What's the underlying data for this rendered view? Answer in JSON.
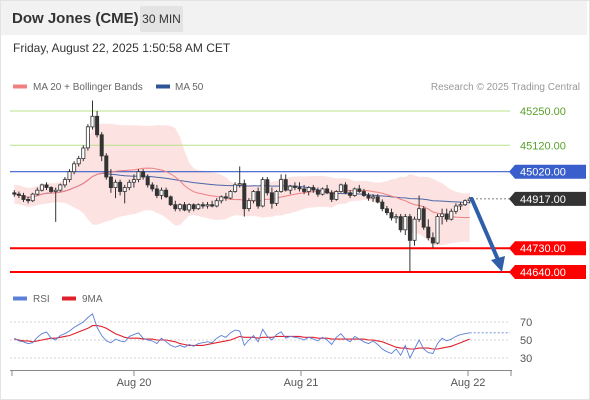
{
  "header": {
    "title": "Dow Jones (CME)",
    "timeframe": "30 MIN",
    "timestamp": "Friday, August 22, 2025 1:50:58 AM CET"
  },
  "legend": {
    "items": [
      {
        "label": "MA 20 + Bollinger Bands",
        "color": "#f08080"
      },
      {
        "label": "MA 50",
        "color": "#2f5597"
      }
    ],
    "credit": "Research © 2025 Trading Central"
  },
  "colors": {
    "candle": "#333333",
    "bollinger_fill": "#fde2e2",
    "ma20": "#f08080",
    "ma50": "#4a66a8",
    "resistance": "#b9e08a",
    "pivot": "#3a5fcd",
    "support": "#ff0000",
    "price_tag": "#333333",
    "arrow": "#2e5fa8",
    "rsi": "#5b7fd6",
    "rsi_ma": "#e0202a"
  },
  "price_levels": [
    {
      "value": 45250.0,
      "label": "45250.00",
      "kind": "resistance"
    },
    {
      "value": 45120.0,
      "label": "45120.00",
      "kind": "resistance"
    },
    {
      "value": 45020.0,
      "label": "45020.00",
      "kind": "pivot"
    },
    {
      "value": 44917.0,
      "label": "44917.00",
      "kind": "last"
    },
    {
      "value": 44730.0,
      "label": "44730.00",
      "kind": "support"
    },
    {
      "value": 44640.0,
      "label": "44640.00",
      "kind": "support"
    }
  ],
  "rsi_panel": {
    "legend": [
      {
        "label": "RSI",
        "color": "#5b7fd6"
      },
      {
        "label": "9MA",
        "color": "#e0202a"
      }
    ],
    "ticks": [
      "70",
      "50",
      "30"
    ]
  },
  "chart_data": {
    "type": "candlestick",
    "x_ticks": [
      "Aug 20",
      "Aug 21",
      "Aug 22"
    ],
    "ylim": [
      44600,
      45330
    ],
    "grid": false,
    "projection": {
      "from": 44917,
      "to": 44640
    },
    "series": [
      {
        "ohlc": [
          [
            44940,
            44950,
            44925,
            44935
          ],
          [
            44935,
            44945,
            44920,
            44930
          ],
          [
            44930,
            44940,
            44905,
            44915
          ],
          [
            44915,
            44925,
            44900,
            44910
          ],
          [
            44910,
            44940,
            44905,
            44935
          ],
          [
            44935,
            44960,
            44930,
            44950
          ],
          [
            44950,
            44975,
            44945,
            44970
          ],
          [
            44970,
            44980,
            44950,
            44960
          ],
          [
            44960,
            44965,
            44940,
            44945
          ],
          [
            44945,
            44960,
            44830,
            44950
          ],
          [
            44950,
            44975,
            44945,
            44970
          ],
          [
            44970,
            45000,
            44960,
            44990
          ],
          [
            44990,
            45030,
            44980,
            45020
          ],
          [
            45020,
            45060,
            45010,
            45050
          ],
          [
            45050,
            45080,
            45040,
            45070
          ],
          [
            45070,
            45120,
            45060,
            45110
          ],
          [
            45110,
            45200,
            45100,
            45190
          ],
          [
            45190,
            45290,
            45180,
            45230
          ],
          [
            45230,
            45250,
            45150,
            45160
          ],
          [
            45160,
            45170,
            45060,
            45080
          ],
          [
            45080,
            45090,
            44990,
            45000
          ],
          [
            45000,
            45030,
            44940,
            44960
          ],
          [
            44960,
            44990,
            44920,
            44980
          ],
          [
            44980,
            44990,
            44930,
            44945
          ],
          [
            44945,
            44970,
            44900,
            44960
          ],
          [
            44960,
            44990,
            44950,
            44980
          ],
          [
            44980,
            45010,
            44960,
            44990
          ],
          [
            44990,
            45030,
            44980,
            45020
          ],
          [
            45020,
            45030,
            44990,
            45000
          ],
          [
            45000,
            45010,
            44960,
            44970
          ],
          [
            44970,
            44980,
            44945,
            44955
          ],
          [
            44955,
            44970,
            44920,
            44930
          ],
          [
            44930,
            44960,
            44915,
            44950
          ],
          [
            44950,
            44960,
            44920,
            44925
          ],
          [
            44925,
            44930,
            44890,
            44895
          ],
          [
            44895,
            44910,
            44870,
            44880
          ],
          [
            44880,
            44900,
            44870,
            44895
          ],
          [
            44895,
            44905,
            44870,
            44875
          ],
          [
            44875,
            44900,
            44865,
            44895
          ],
          [
            44895,
            44900,
            44870,
            44880
          ],
          [
            44880,
            44900,
            44875,
            44895
          ],
          [
            44895,
            44905,
            44880,
            44890
          ],
          [
            44890,
            44905,
            44880,
            44895
          ],
          [
            44895,
            44910,
            44885,
            44890
          ],
          [
            44890,
            44920,
            44885,
            44910
          ],
          [
            44910,
            44930,
            44900,
            44925
          ],
          [
            44925,
            44940,
            44910,
            44920
          ],
          [
            44920,
            44950,
            44915,
            44945
          ],
          [
            44945,
            44980,
            44940,
            44970
          ],
          [
            44970,
            45040,
            44960,
            44975
          ],
          [
            44975,
            44990,
            44850,
            44880
          ],
          [
            44880,
            44920,
            44870,
            44910
          ],
          [
            44910,
            44950,
            44900,
            44945
          ],
          [
            44945,
            44960,
            44880,
            44890
          ],
          [
            44890,
            45000,
            44885,
            44990
          ],
          [
            44990,
            45000,
            44930,
            44940
          ],
          [
            44940,
            44960,
            44880,
            44900
          ],
          [
            44900,
            44950,
            44890,
            44945
          ],
          [
            44945,
            45010,
            44940,
            44990
          ],
          [
            44990,
            45010,
            44945,
            44950
          ],
          [
            44950,
            44970,
            44935,
            44965
          ],
          [
            44965,
            44980,
            44950,
            44960
          ],
          [
            44960,
            44980,
            44945,
            44955
          ],
          [
            44955,
            44970,
            44935,
            44945
          ],
          [
            44945,
            44965,
            44930,
            44960
          ],
          [
            44960,
            44970,
            44940,
            44950
          ],
          [
            44950,
            44960,
            44925,
            44935
          ],
          [
            44935,
            44960,
            44930,
            44955
          ],
          [
            44955,
            44970,
            44935,
            44940
          ],
          [
            44940,
            44950,
            44905,
            44915
          ],
          [
            44915,
            44950,
            44910,
            44945
          ],
          [
            44945,
            44975,
            44940,
            44970
          ],
          [
            44970,
            44980,
            44935,
            44940
          ],
          [
            44940,
            44950,
            44920,
            44930
          ],
          [
            44930,
            44960,
            44925,
            44955
          ],
          [
            44955,
            44970,
            44940,
            44945
          ],
          [
            44945,
            44955,
            44925,
            44930
          ],
          [
            44930,
            44940,
            44910,
            44920
          ],
          [
            44920,
            44935,
            44905,
            44925
          ],
          [
            44925,
            44935,
            44900,
            44905
          ],
          [
            44905,
            44915,
            44870,
            44880
          ],
          [
            44880,
            44890,
            44855,
            44865
          ],
          [
            44865,
            44880,
            44835,
            44845
          ],
          [
            44845,
            44860,
            44825,
            44850
          ],
          [
            44850,
            44860,
            44790,
            44800
          ],
          [
            44800,
            44860,
            44780,
            44850
          ],
          [
            44850,
            44860,
            44640,
            44760
          ],
          [
            44760,
            44850,
            44740,
            44840
          ],
          [
            44840,
            44930,
            44830,
            44880
          ],
          [
            44880,
            44890,
            44800,
            44810
          ],
          [
            44810,
            44840,
            44760,
            44770
          ],
          [
            44770,
            44790,
            44730,
            44750
          ],
          [
            44750,
            44860,
            44745,
            44850
          ],
          [
            44850,
            44880,
            44820,
            44860
          ],
          [
            44860,
            44880,
            44830,
            44840
          ],
          [
            44840,
            44880,
            44835,
            44870
          ],
          [
            44870,
            44900,
            44860,
            44890
          ],
          [
            44890,
            44905,
            44875,
            44895
          ],
          [
            44895,
            44915,
            44890,
            44910
          ],
          [
            44910,
            44925,
            44900,
            44917
          ]
        ]
      }
    ],
    "rsi": {
      "ylim": [
        20,
        80
      ],
      "rsi": [
        52,
        49,
        48,
        46,
        47,
        53,
        57,
        59,
        52,
        50,
        55,
        57,
        60,
        64,
        67,
        70,
        75,
        79,
        64,
        55,
        49,
        47,
        51,
        49,
        48,
        54,
        56,
        58,
        52,
        50,
        49,
        46,
        52,
        48,
        44,
        42,
        44,
        42,
        45,
        43,
        46,
        47,
        48,
        47,
        52,
        55,
        53,
        58,
        61,
        60,
        44,
        50,
        55,
        48,
        62,
        54,
        50,
        56,
        59,
        52,
        54,
        53,
        52,
        50,
        53,
        51,
        49,
        53,
        50,
        45,
        53,
        57,
        51,
        48,
        54,
        51,
        48,
        46,
        49,
        45,
        40,
        37,
        35,
        40,
        33,
        44,
        30,
        40,
        50,
        40,
        36,
        35,
        46,
        52,
        49,
        51,
        54,
        56,
        57,
        58
      ],
      "ma": [
        51,
        50,
        49,
        49,
        48,
        49,
        50,
        51,
        52,
        52,
        53,
        54,
        55,
        57,
        59,
        61,
        63,
        66,
        66,
        65,
        63,
        60,
        57,
        55,
        53,
        52,
        52,
        52,
        51,
        51,
        51,
        50,
        50,
        50,
        49,
        48,
        46,
        45,
        44,
        44,
        44,
        44,
        45,
        46,
        47,
        48,
        49,
        50,
        52,
        54,
        53,
        53,
        53,
        52,
        53,
        53,
        53,
        54,
        54,
        54,
        54,
        54,
        54,
        53,
        53,
        53,
        52,
        52,
        52,
        51,
        51,
        51,
        51,
        51,
        51,
        51,
        51,
        50,
        50,
        49,
        48,
        46,
        44,
        42,
        41,
        41,
        40,
        40,
        41,
        41,
        41,
        40,
        40,
        41,
        42,
        43,
        45,
        47,
        49,
        51
      ]
    }
  }
}
